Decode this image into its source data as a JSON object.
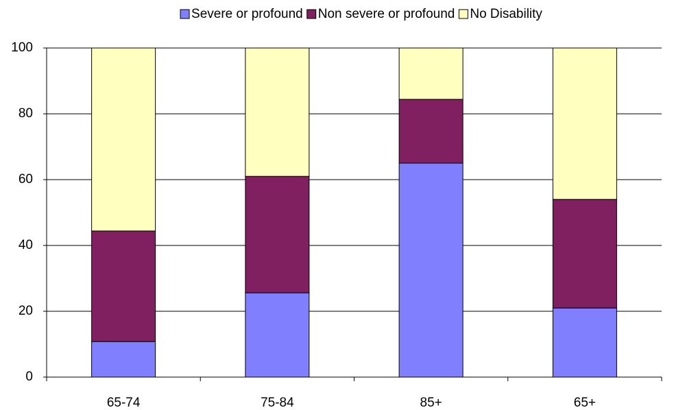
{
  "chart_data": {
    "type": "stacked-bar",
    "categories": [
      "65-74",
      "75-84",
      "85+",
      "65+"
    ],
    "series": [
      {
        "name": "Severe or profound",
        "color": "#8080ff",
        "values": [
          10.8,
          25.6,
          65.0,
          21.0
        ]
      },
      {
        "name": "Non severe or profound",
        "color": "#802060",
        "values": [
          33.6,
          35.4,
          19.4,
          33.0
        ]
      },
      {
        "name": "No Disability",
        "color": "#ffffc0",
        "values": [
          55.6,
          39.0,
          15.6,
          46.0
        ]
      }
    ],
    "ylim": [
      0,
      100
    ],
    "yticks": [
      0,
      20,
      40,
      60,
      80,
      100
    ],
    "grid": true,
    "legend": "top"
  }
}
